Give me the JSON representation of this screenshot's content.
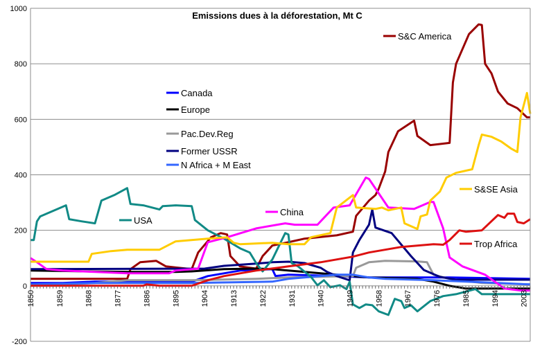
{
  "chart_data": {
    "type": "line",
    "title": "Emissions dues à la déforestation, Mt C",
    "xlabel": "",
    "ylabel": "",
    "xlim": [
      1850,
      2005
    ],
    "ylim": [
      -200,
      1000
    ],
    "yticks": [
      -200,
      0,
      200,
      400,
      600,
      800,
      1000
    ],
    "xticks": [
      1850,
      1859,
      1868,
      1877,
      1886,
      1895,
      1904,
      1913,
      1922,
      1931,
      1940,
      1949,
      1958,
      1967,
      1976,
      1985,
      1994,
      2003
    ],
    "grid": "horizontal",
    "legend": "inline labels",
    "series": [
      {
        "name": "S&C America",
        "color": "#990000",
        "points": [
          [
            1850,
            25
          ],
          [
            1880,
            25
          ],
          [
            1881,
            60
          ],
          [
            1884,
            85
          ],
          [
            1889,
            90
          ],
          [
            1892,
            70
          ],
          [
            1900,
            60
          ],
          [
            1902,
            120
          ],
          [
            1906,
            175
          ],
          [
            1909,
            190
          ],
          [
            1911,
            185
          ],
          [
            1912,
            107
          ],
          [
            1915,
            70
          ],
          [
            1920,
            62
          ],
          [
            1922,
            107
          ],
          [
            1925,
            145
          ],
          [
            1930,
            157
          ],
          [
            1935,
            170
          ],
          [
            1945,
            182
          ],
          [
            1950,
            195
          ],
          [
            1951,
            252
          ],
          [
            1955,
            307
          ],
          [
            1957,
            327
          ],
          [
            1958,
            350
          ],
          [
            1960,
            412
          ],
          [
            1961,
            482
          ],
          [
            1964,
            557
          ],
          [
            1969,
            595
          ],
          [
            1970,
            540
          ],
          [
            1974,
            507
          ],
          [
            1980,
            515
          ],
          [
            1981,
            732
          ],
          [
            1982,
            800
          ],
          [
            1986,
            907
          ],
          [
            1989,
            942
          ],
          [
            1990,
            940
          ],
          [
            1991,
            800
          ],
          [
            1993,
            765
          ],
          [
            1995,
            700
          ],
          [
            1998,
            657
          ],
          [
            2001,
            640
          ],
          [
            2004,
            607
          ],
          [
            2005,
            607
          ]
        ]
      },
      {
        "name": "Canada",
        "color": "#0000ff",
        "points": [
          [
            1850,
            10
          ],
          [
            1860,
            10
          ],
          [
            1870,
            15
          ],
          [
            1900,
            15
          ],
          [
            1905,
            35
          ],
          [
            1910,
            45
          ],
          [
            1915,
            55
          ],
          [
            1925,
            60
          ],
          [
            1926,
            35
          ],
          [
            1930,
            40
          ],
          [
            1945,
            35
          ],
          [
            1955,
            30
          ],
          [
            1980,
            30
          ],
          [
            2005,
            25
          ]
        ]
      },
      {
        "name": "Europe",
        "color": "#000000",
        "points": [
          [
            1850,
            55
          ],
          [
            1880,
            50
          ],
          [
            1895,
            50
          ],
          [
            1900,
            52
          ],
          [
            1910,
            60
          ],
          [
            1920,
            62
          ],
          [
            1925,
            60
          ],
          [
            1930,
            55
          ],
          [
            1940,
            45
          ],
          [
            1950,
            35
          ],
          [
            1955,
            30
          ],
          [
            1970,
            25
          ],
          [
            1975,
            15
          ],
          [
            1980,
            0
          ],
          [
            1985,
            -10
          ],
          [
            2005,
            -10
          ]
        ]
      },
      {
        "name": "Pac.Dev.Reg",
        "color": "#999999",
        "points": [
          [
            1850,
            0
          ],
          [
            1870,
            10
          ],
          [
            1880,
            20
          ],
          [
            1900,
            20
          ],
          [
            1920,
            25
          ],
          [
            1930,
            30
          ],
          [
            1950,
            35
          ],
          [
            1951,
            65
          ],
          [
            1955,
            85
          ],
          [
            1960,
            90
          ],
          [
            1970,
            88
          ],
          [
            1973,
            85
          ],
          [
            1975,
            40
          ],
          [
            1980,
            25
          ],
          [
            1990,
            10
          ],
          [
            2005,
            5
          ]
        ]
      },
      {
        "name": "Former USSR",
        "color": "#000080",
        "points": [
          [
            1850,
            60
          ],
          [
            1904,
            62
          ],
          [
            1910,
            72
          ],
          [
            1920,
            80
          ],
          [
            1925,
            85
          ],
          [
            1930,
            87
          ],
          [
            1935,
            82
          ],
          [
            1940,
            65
          ],
          [
            1942,
            50
          ],
          [
            1945,
            35
          ],
          [
            1949,
            20
          ],
          [
            1950,
            120
          ],
          [
            1952,
            165
          ],
          [
            1955,
            220
          ],
          [
            1956,
            275
          ],
          [
            1957,
            210
          ],
          [
            1962,
            190
          ],
          [
            1968,
            107
          ],
          [
            1972,
            57
          ],
          [
            1977,
            32
          ],
          [
            1982,
            22
          ],
          [
            2005,
            22
          ]
        ]
      },
      {
        "name": "N Africa + M East",
        "color": "#3366ff",
        "points": [
          [
            1850,
            5
          ],
          [
            1870,
            10
          ],
          [
            1900,
            10
          ],
          [
            1925,
            15
          ],
          [
            1930,
            25
          ],
          [
            1940,
            35
          ],
          [
            1945,
            40
          ],
          [
            1950,
            40
          ],
          [
            1955,
            30
          ],
          [
            1960,
            25
          ],
          [
            1975,
            20
          ],
          [
            1985,
            15
          ],
          [
            1995,
            10
          ],
          [
            2005,
            5
          ]
        ]
      },
      {
        "name": "USA",
        "color": "#118a86",
        "points": [
          [
            1850,
            165
          ],
          [
            1851,
            165
          ],
          [
            1852,
            232
          ],
          [
            1853,
            250
          ],
          [
            1861,
            290
          ],
          [
            1862,
            240
          ],
          [
            1866,
            232
          ],
          [
            1870,
            225
          ],
          [
            1872,
            307
          ],
          [
            1876,
            327
          ],
          [
            1880,
            352
          ],
          [
            1881,
            295
          ],
          [
            1885,
            290
          ],
          [
            1890,
            275
          ],
          [
            1891,
            287
          ],
          [
            1895,
            290
          ],
          [
            1900,
            287
          ],
          [
            1901,
            237
          ],
          [
            1905,
            200
          ],
          [
            1910,
            170
          ],
          [
            1915,
            135
          ],
          [
            1918,
            120
          ],
          [
            1920,
            82
          ],
          [
            1922,
            52
          ],
          [
            1925,
            95
          ],
          [
            1929,
            190
          ],
          [
            1930,
            185
          ],
          [
            1931,
            82
          ],
          [
            1933,
            70
          ],
          [
            1937,
            32
          ],
          [
            1939,
            2
          ],
          [
            1941,
            20
          ],
          [
            1943,
            -5
          ],
          [
            1946,
            2
          ],
          [
            1948,
            -12
          ],
          [
            1949,
            15
          ],
          [
            1950,
            -67
          ],
          [
            1952,
            -80
          ],
          [
            1954,
            -67
          ],
          [
            1956,
            -70
          ],
          [
            1958,
            -92
          ],
          [
            1961,
            -105
          ],
          [
            1963,
            -47
          ],
          [
            1965,
            -55
          ],
          [
            1966,
            -80
          ],
          [
            1968,
            -70
          ],
          [
            1970,
            -92
          ],
          [
            1974,
            -55
          ],
          [
            1978,
            -37
          ],
          [
            1982,
            -30
          ],
          [
            1988,
            -12
          ],
          [
            1990,
            -30
          ],
          [
            2005,
            -30
          ]
        ]
      },
      {
        "name": "China",
        "color": "#ff00ff",
        "points": [
          [
            1850,
            100
          ],
          [
            1852,
            85
          ],
          [
            1855,
            60
          ],
          [
            1860,
            55
          ],
          [
            1870,
            50
          ],
          [
            1880,
            45
          ],
          [
            1893,
            45
          ],
          [
            1895,
            55
          ],
          [
            1902,
            62
          ],
          [
            1905,
            157
          ],
          [
            1911,
            175
          ],
          [
            1920,
            207
          ],
          [
            1929,
            225
          ],
          [
            1932,
            220
          ],
          [
            1939,
            220
          ],
          [
            1944,
            282
          ],
          [
            1949,
            290
          ],
          [
            1954,
            390
          ],
          [
            1955,
            385
          ],
          [
            1961,
            282
          ],
          [
            1969,
            277
          ],
          [
            1974,
            302
          ],
          [
            1975,
            302
          ],
          [
            1978,
            207
          ],
          [
            1980,
            102
          ],
          [
            1984,
            70
          ],
          [
            1991,
            40
          ],
          [
            1997,
            -10
          ],
          [
            2002,
            -17
          ],
          [
            2005,
            -17
          ]
        ]
      },
      {
        "name": "S&SE Asia",
        "color": "#ffcc00",
        "points": [
          [
            1850,
            87
          ],
          [
            1868,
            87
          ],
          [
            1869,
            115
          ],
          [
            1875,
            125
          ],
          [
            1880,
            130
          ],
          [
            1890,
            130
          ],
          [
            1895,
            160
          ],
          [
            1905,
            170
          ],
          [
            1911,
            175
          ],
          [
            1913,
            155
          ],
          [
            1915,
            150
          ],
          [
            1925,
            155
          ],
          [
            1930,
            150
          ],
          [
            1935,
            150
          ],
          [
            1937,
            175
          ],
          [
            1943,
            190
          ],
          [
            1945,
            282
          ],
          [
            1950,
            327
          ],
          [
            1951,
            282
          ],
          [
            1957,
            277
          ],
          [
            1959,
            282
          ],
          [
            1961,
            272
          ],
          [
            1965,
            282
          ],
          [
            1966,
            225
          ],
          [
            1970,
            205
          ],
          [
            1971,
            250
          ],
          [
            1973,
            257
          ],
          [
            1974,
            307
          ],
          [
            1977,
            340
          ],
          [
            1979,
            390
          ],
          [
            1982,
            407
          ],
          [
            1987,
            420
          ],
          [
            1989,
            507
          ],
          [
            1990,
            545
          ],
          [
            1993,
            537
          ],
          [
            1996,
            520
          ],
          [
            1999,
            495
          ],
          [
            2001,
            482
          ],
          [
            2002,
            607
          ],
          [
            2004,
            695
          ],
          [
            2005,
            620
          ]
        ]
      },
      {
        "name": "Trop Africa",
        "color": "#dd1111",
        "points": [
          [
            1850,
            0
          ],
          [
            1885,
            0
          ],
          [
            1886,
            5
          ],
          [
            1890,
            0
          ],
          [
            1900,
            0
          ],
          [
            1905,
            20
          ],
          [
            1910,
            35
          ],
          [
            1920,
            55
          ],
          [
            1930,
            70
          ],
          [
            1940,
            85
          ],
          [
            1950,
            105
          ],
          [
            1955,
            120
          ],
          [
            1960,
            130
          ],
          [
            1965,
            140
          ],
          [
            1970,
            145
          ],
          [
            1975,
            150
          ],
          [
            1978,
            148
          ],
          [
            1980,
            165
          ],
          [
            1983,
            200
          ],
          [
            1985,
            195
          ],
          [
            1990,
            200
          ],
          [
            1995,
            255
          ],
          [
            1997,
            245
          ],
          [
            1998,
            260
          ],
          [
            2000,
            260
          ],
          [
            2001,
            230
          ],
          [
            2003,
            225
          ],
          [
            2005,
            240
          ]
        ]
      }
    ]
  }
}
